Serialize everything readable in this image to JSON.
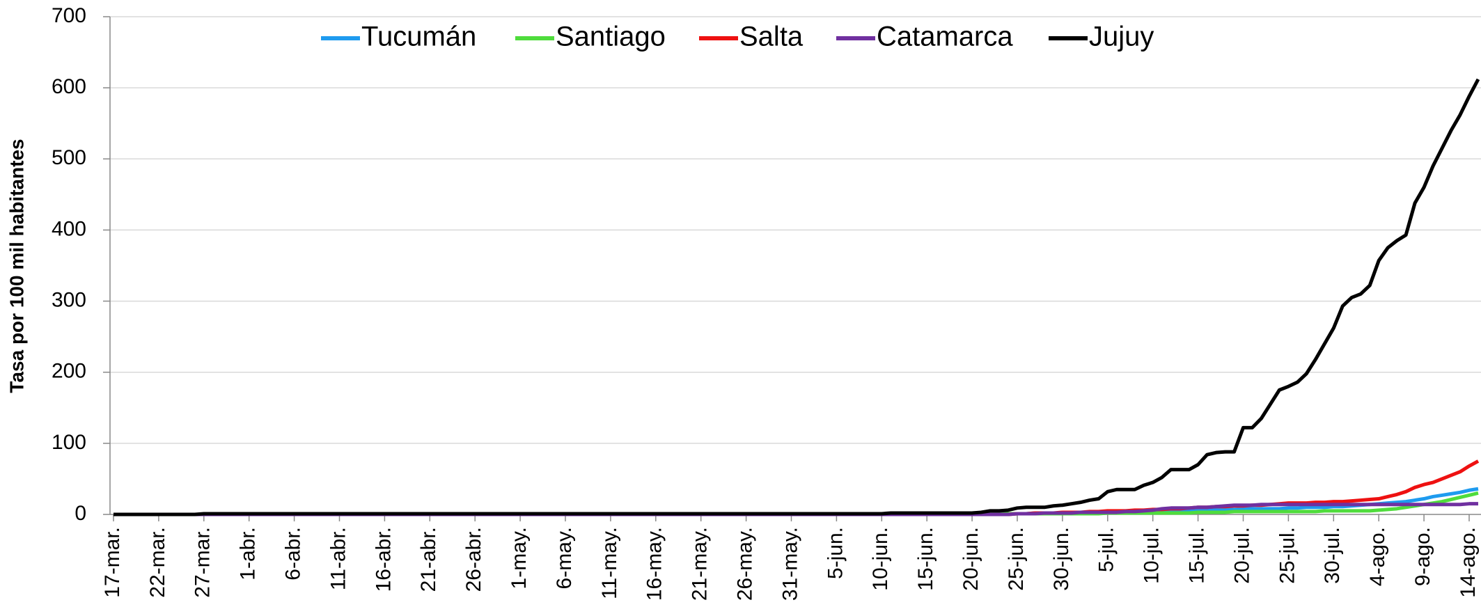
{
  "chart_data": {
    "type": "line",
    "ylabel": "Tasa por 100 mil habitantes",
    "ylim": [
      0,
      700
    ],
    "yticks": [
      0,
      100,
      200,
      300,
      400,
      500,
      600,
      700
    ],
    "grid": true,
    "legend": "top",
    "categories": [
      "17-mar.",
      null,
      null,
      null,
      null,
      "22-mar.",
      null,
      null,
      null,
      null,
      "27-mar.",
      null,
      null,
      null,
      null,
      "1-abr.",
      null,
      null,
      null,
      null,
      "6-abr.",
      null,
      null,
      null,
      null,
      "11-abr.",
      null,
      null,
      null,
      null,
      "16-abr.",
      null,
      null,
      null,
      null,
      "21-abr.",
      null,
      null,
      null,
      null,
      "26-abr.",
      null,
      null,
      null,
      null,
      "1-may.",
      null,
      null,
      null,
      null,
      "6-may.",
      null,
      null,
      null,
      null,
      "11-may.",
      null,
      null,
      null,
      null,
      "16-may.",
      null,
      null,
      null,
      null,
      "21-may.",
      null,
      null,
      null,
      null,
      "26-may.",
      null,
      null,
      null,
      null,
      "31-may.",
      null,
      null,
      null,
      null,
      "5-jun.",
      null,
      null,
      null,
      null,
      "10-jun.",
      null,
      null,
      null,
      null,
      "15-jun.",
      null,
      null,
      null,
      null,
      "20-jun.",
      null,
      null,
      null,
      null,
      "25-jun.",
      null,
      null,
      null,
      null,
      "30-jun.",
      null,
      null,
      null,
      null,
      "5-jul.",
      null,
      null,
      null,
      null,
      "10-jul.",
      null,
      null,
      null,
      null,
      "15-jul.",
      null,
      null,
      null,
      null,
      "20-jul.",
      null,
      null,
      null,
      null,
      "25-jul.",
      null,
      null,
      null,
      null,
      "30-jul.",
      null,
      null,
      null,
      null,
      "4-ago.",
      null,
      null,
      null,
      null,
      "9-ago.",
      null,
      null,
      null,
      null,
      "14-ago.",
      null
    ],
    "series": [
      {
        "name": "Tucumán",
        "color": "#1e9bef",
        "values": [
          0,
          0,
          0,
          0,
          0,
          0,
          0,
          0,
          0,
          0,
          0,
          0,
          0,
          0,
          0,
          0,
          0,
          0,
          0,
          0,
          0,
          0,
          0,
          0,
          0,
          0,
          0,
          0,
          0,
          0,
          0,
          0,
          0,
          0,
          0,
          0,
          0,
          0,
          0,
          0,
          0,
          0,
          0,
          0,
          0,
          0,
          0,
          0,
          0,
          0,
          0,
          0,
          0,
          0,
          0,
          0,
          0,
          0,
          0,
          0,
          0,
          0,
          0,
          0,
          0,
          0,
          0,
          0,
          0,
          0,
          0,
          0,
          0,
          0,
          0,
          0,
          0,
          0,
          0,
          0,
          0,
          0,
          0,
          0,
          0,
          0,
          0,
          0,
          0,
          0,
          1,
          1,
          1,
          1,
          1,
          1,
          1,
          1,
          1,
          1,
          1,
          1,
          2,
          2,
          2,
          2,
          2,
          3,
          3,
          3,
          3,
          3,
          4,
          4,
          4,
          5,
          5,
          5,
          6,
          6,
          6,
          6,
          7,
          7,
          7,
          8,
          8,
          8,
          8,
          8,
          9,
          9,
          10,
          10,
          10,
          11,
          11,
          12,
          13,
          14,
          15,
          16,
          17,
          18,
          20,
          22,
          25,
          27,
          29,
          31,
          34,
          36
        ]
      },
      {
        "name": "Santiago",
        "color": "#4fdc3c",
        "values": [
          0,
          0,
          0,
          0,
          0,
          0,
          0,
          0,
          0,
          0,
          0,
          0,
          0,
          0,
          0,
          0,
          0,
          0,
          0,
          0,
          0,
          0,
          0,
          0,
          0,
          0,
          0,
          0,
          0,
          0,
          0,
          0,
          0,
          0,
          0,
          0,
          0,
          0,
          0,
          0,
          0,
          0,
          0,
          0,
          0,
          0,
          0,
          0,
          0,
          0,
          0,
          0,
          0,
          0,
          0,
          0,
          0,
          0,
          0,
          0,
          1,
          1,
          1,
          1,
          1,
          1,
          1,
          1,
          1,
          1,
          1,
          1,
          1,
          1,
          1,
          1,
          1,
          1,
          1,
          1,
          1,
          1,
          1,
          1,
          1,
          1,
          1,
          1,
          1,
          1,
          1,
          1,
          1,
          1,
          1,
          1,
          1,
          1,
          1,
          1,
          1,
          1,
          1,
          1,
          1,
          1,
          1,
          1,
          1,
          1,
          2,
          2,
          2,
          2,
          2,
          2,
          2,
          2,
          2,
          2,
          3,
          3,
          3,
          3,
          4,
          4,
          4,
          4,
          4,
          4,
          4,
          4,
          4,
          4,
          5,
          5,
          5,
          5,
          5,
          5,
          6,
          7,
          8,
          10,
          12,
          14,
          16,
          18,
          21,
          24,
          27,
          30
        ]
      },
      {
        "name": "Salta",
        "color": "#ee1111",
        "values": [
          0,
          0,
          0,
          0,
          0,
          0,
          0,
          0,
          0,
          0,
          0,
          0,
          0,
          0,
          0,
          0,
          0,
          0,
          0,
          0,
          0,
          0,
          0,
          0,
          0,
          0,
          0,
          0,
          0,
          0,
          0,
          0,
          0,
          0,
          0,
          0,
          0,
          0,
          0,
          0,
          0,
          0,
          0,
          0,
          0,
          0,
          0,
          0,
          0,
          0,
          0,
          0,
          0,
          0,
          0,
          0,
          0,
          0,
          0,
          0,
          0,
          0,
          0,
          0,
          0,
          0,
          0,
          0,
          0,
          0,
          0,
          0,
          0,
          0,
          0,
          0,
          0,
          0,
          0,
          0,
          0,
          0,
          0,
          0,
          0,
          0,
          0,
          0,
          0,
          0,
          0,
          0,
          0,
          0,
          0,
          0,
          0,
          0,
          0,
          0,
          1,
          1,
          2,
          2,
          2,
          3,
          3,
          3,
          4,
          4,
          5,
          5,
          5,
          6,
          6,
          7,
          7,
          8,
          8,
          9,
          10,
          10,
          11,
          11,
          12,
          12,
          13,
          13,
          14,
          15,
          16,
          16,
          16,
          17,
          17,
          18,
          18,
          19,
          20,
          21,
          22,
          25,
          28,
          32,
          38,
          42,
          45,
          50,
          55,
          60,
          68,
          75
        ]
      },
      {
        "name": "Catamarca",
        "color": "#7030a0",
        "values": [
          0,
          0,
          0,
          0,
          0,
          0,
          0,
          0,
          0,
          0,
          0,
          0,
          0,
          0,
          0,
          0,
          0,
          0,
          0,
          0,
          0,
          0,
          0,
          0,
          0,
          0,
          0,
          0,
          0,
          0,
          0,
          0,
          0,
          0,
          0,
          0,
          0,
          0,
          0,
          0,
          0,
          0,
          0,
          0,
          0,
          0,
          0,
          0,
          0,
          0,
          0,
          0,
          0,
          0,
          0,
          0,
          0,
          0,
          0,
          0,
          0,
          0,
          0,
          0,
          0,
          0,
          0,
          0,
          0,
          0,
          0,
          0,
          0,
          0,
          0,
          0,
          0,
          0,
          0,
          0,
          0,
          0,
          0,
          0,
          0,
          0,
          0,
          0,
          0,
          0,
          0,
          0,
          0,
          0,
          0,
          0,
          0,
          0,
          0,
          0,
          1,
          1,
          1,
          2,
          2,
          2,
          2,
          3,
          3,
          3,
          3,
          3,
          4,
          4,
          5,
          6,
          8,
          9,
          9,
          9,
          10,
          10,
          11,
          12,
          13,
          13,
          13,
          14,
          14,
          14,
          14,
          14,
          14,
          14,
          14,
          14,
          14,
          14,
          14,
          14,
          14,
          14,
          14,
          14,
          14,
          14,
          14,
          14,
          14,
          14,
          15,
          15
        ]
      },
      {
        "name": "Jujuy",
        "color": "#000000",
        "values": [
          0,
          0,
          0,
          0,
          0,
          0,
          0,
          0,
          0,
          0,
          1,
          1,
          1,
          1,
          1,
          1,
          1,
          1,
          1,
          1,
          1,
          1,
          1,
          1,
          1,
          1,
          1,
          1,
          1,
          1,
          1,
          1,
          1,
          1,
          1,
          1,
          1,
          1,
          1,
          1,
          1,
          1,
          1,
          1,
          1,
          1,
          1,
          1,
          1,
          1,
          1,
          1,
          1,
          1,
          1,
          1,
          1,
          1,
          1,
          1,
          1,
          1,
          1,
          1,
          1,
          1,
          1,
          1,
          1,
          1,
          1,
          1,
          1,
          1,
          1,
          1,
          1,
          1,
          1,
          1,
          1,
          1,
          1,
          1,
          1,
          1,
          2,
          2,
          2,
          2,
          2,
          2,
          2,
          2,
          2,
          2,
          3,
          5,
          5,
          6,
          9,
          10,
          10,
          10,
          12,
          13,
          15,
          17,
          20,
          22,
          32,
          35,
          35,
          35,
          41,
          45,
          52,
          63,
          63,
          63,
          70,
          84,
          87,
          88,
          88,
          122,
          122,
          135,
          155,
          175,
          180,
          186,
          198,
          218,
          240,
          262,
          293,
          305,
          310,
          322,
          357,
          375,
          385,
          393,
          438,
          460,
          490,
          515,
          540,
          562,
          588,
          612
        ]
      }
    ]
  }
}
